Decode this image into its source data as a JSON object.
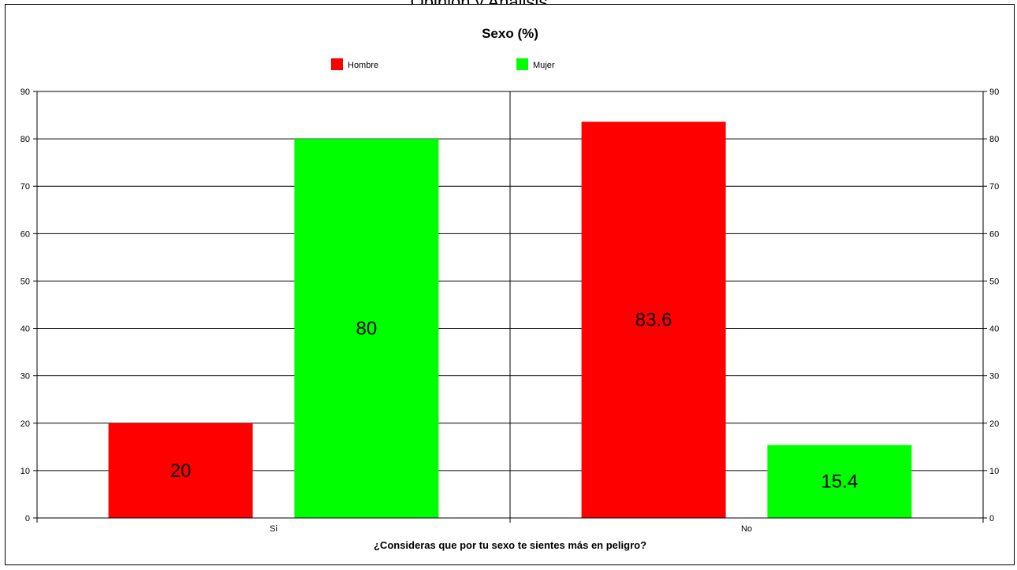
{
  "document": {
    "header_text": "Opinión y Análisis"
  },
  "chart_data": {
    "type": "bar",
    "title": "Sexo (%)",
    "xlabel": "¿Consideras que por tu sexo te sientes más en peligro?",
    "ylabel": "",
    "ylim": [
      0,
      90
    ],
    "yticks": [
      0,
      10,
      20,
      30,
      40,
      50,
      60,
      70,
      80,
      90
    ],
    "categories": [
      "Si",
      "No"
    ],
    "series": [
      {
        "name": "Hombre",
        "color": "#ff0000",
        "values": [
          20,
          83.6
        ]
      },
      {
        "name": "Mujer",
        "color": "#00ff00",
        "values": [
          80,
          15.4
        ]
      }
    ],
    "data_labels": [
      [
        "20",
        "83.6"
      ],
      [
        "80",
        "15.4"
      ]
    ],
    "grid": true,
    "legend": "top-center",
    "secondary_y_axis": true
  }
}
